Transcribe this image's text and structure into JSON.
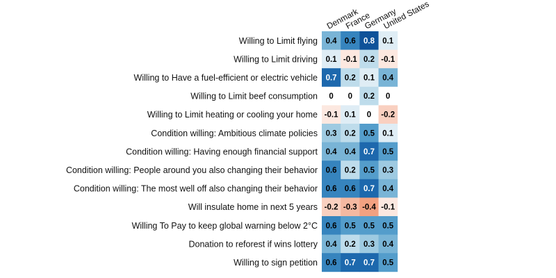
{
  "chart_data": {
    "type": "heatmap",
    "columns": [
      "Denmark",
      "France",
      "Germany",
      "United States"
    ],
    "rows": [
      "Willing to Limit flying",
      "Willing to Limit driving",
      "Willing to Have a fuel-efficient or electric vehicle",
      "Willing to Limit beef consumption",
      "Willing to Limit heating or cooling your home",
      "Condition willing: Ambitious climate policies",
      "Condition willing: Having enough financial support",
      "Condition willing: People around you also changing their behavior",
      "Condition willing: The most well off also changing their behavior",
      "Will insulate home in next 5 years",
      "Willing To Pay to keep global warning below 2°C",
      "Donation to reforest if wins lottery",
      "Willing to sign petition"
    ],
    "values": [
      [
        0.4,
        0.6,
        0.8,
        0.1
      ],
      [
        0.1,
        -0.1,
        0.2,
        -0.1
      ],
      [
        0.7,
        0.2,
        0.1,
        0.4
      ],
      [
        0,
        0,
        0.2,
        0
      ],
      [
        -0.1,
        0.1,
        0,
        -0.2
      ],
      [
        0.3,
        0.2,
        0.5,
        0.1
      ],
      [
        0.4,
        0.4,
        0.7,
        0.5
      ],
      [
        0.6,
        0.2,
        0.5,
        0.3
      ],
      [
        0.6,
        0.6,
        0.7,
        0.4
      ],
      [
        -0.2,
        -0.3,
        -0.4,
        -0.1
      ],
      [
        0.6,
        0.5,
        0.5,
        0.5
      ],
      [
        0.4,
        0.2,
        0.3,
        0.4
      ],
      [
        0.6,
        0.7,
        0.7,
        0.5
      ]
    ],
    "value_range": [
      -1,
      1
    ],
    "colormap": "RdBu (red negative, white zero, blue positive)",
    "color_negative": "#b2182b",
    "color_zero": "#ffffff",
    "color_positive": "#08306b"
  }
}
